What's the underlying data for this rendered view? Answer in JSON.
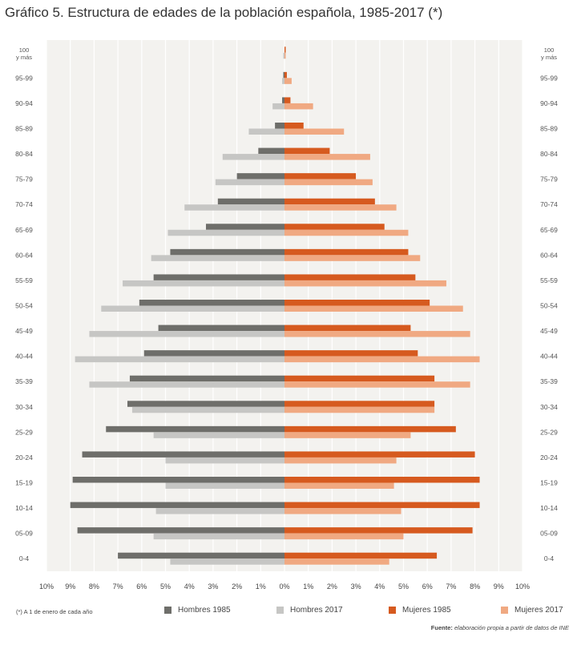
{
  "title": "Gráfico 5. Estructura de edades de la población española, 1985-2017 (*)",
  "footnote": "(*) A 1 de enero de cada año",
  "source": {
    "label": "Fuente:",
    "text": "elaboración propia a partir de datos de INE"
  },
  "colors": {
    "hombres1985": "#6e6e6a",
    "hombres2017": "#c6c6c4",
    "mujeres1985": "#d65a1f",
    "mujeres2017": "#f0a982",
    "background": "#f3f2ef",
    "grid": "#ffffff"
  },
  "chart_data": {
    "type": "bar",
    "orientation": "horizontal-pyramid",
    "categories": [
      "100\ny más",
      "95-99",
      "90-94",
      "85-89",
      "80-84",
      "75-79",
      "70-74",
      "65-69",
      "60-64",
      "55-59",
      "50-54",
      "45-49",
      "40-44",
      "35-39",
      "30-34",
      "25-29",
      "20-24",
      "15-19",
      "10-14",
      "05-09",
      "0-4"
    ],
    "x_ticks": [
      "10%",
      "9%",
      "8%",
      "7%",
      "6%",
      "5%",
      "4%",
      "3%",
      "2%",
      "1%",
      "0%",
      "1%",
      "2%",
      "3%",
      "4%",
      "5%",
      "6%",
      "7%",
      "8%",
      "9%",
      "10%"
    ],
    "xlim": [
      -10,
      10
    ],
    "grid": true,
    "legend_position": "bottom",
    "series": [
      {
        "name": "Hombres 1985",
        "side": "left",
        "values": [
          0.0,
          0.05,
          0.1,
          0.4,
          1.1,
          2.0,
          2.8,
          3.3,
          4.8,
          5.5,
          6.1,
          5.3,
          5.9,
          6.5,
          6.6,
          7.5,
          8.5,
          8.9,
          9.0,
          8.7,
          7.0
        ]
      },
      {
        "name": "Hombres 2017",
        "side": "left",
        "values": [
          0.05,
          0.1,
          0.5,
          1.5,
          2.6,
          2.9,
          4.2,
          4.9,
          5.6,
          6.8,
          7.7,
          8.2,
          8.8,
          8.2,
          6.4,
          5.5,
          5.0,
          5.0,
          5.4,
          5.5,
          4.8
        ]
      },
      {
        "name": "Mujeres 1985",
        "side": "right",
        "values": [
          0.05,
          0.1,
          0.25,
          0.8,
          1.9,
          3.0,
          3.8,
          4.2,
          5.2,
          5.5,
          6.1,
          5.3,
          5.6,
          6.3,
          6.3,
          7.2,
          8.0,
          8.2,
          8.2,
          7.9,
          6.4
        ]
      },
      {
        "name": "Mujeres 2017",
        "side": "right",
        "values": [
          0.05,
          0.3,
          1.2,
          2.5,
          3.6,
          3.7,
          4.7,
          5.2,
          5.7,
          6.8,
          7.5,
          7.8,
          8.2,
          7.8,
          6.3,
          5.3,
          4.7,
          4.6,
          4.9,
          5.0,
          4.4
        ]
      }
    ]
  }
}
